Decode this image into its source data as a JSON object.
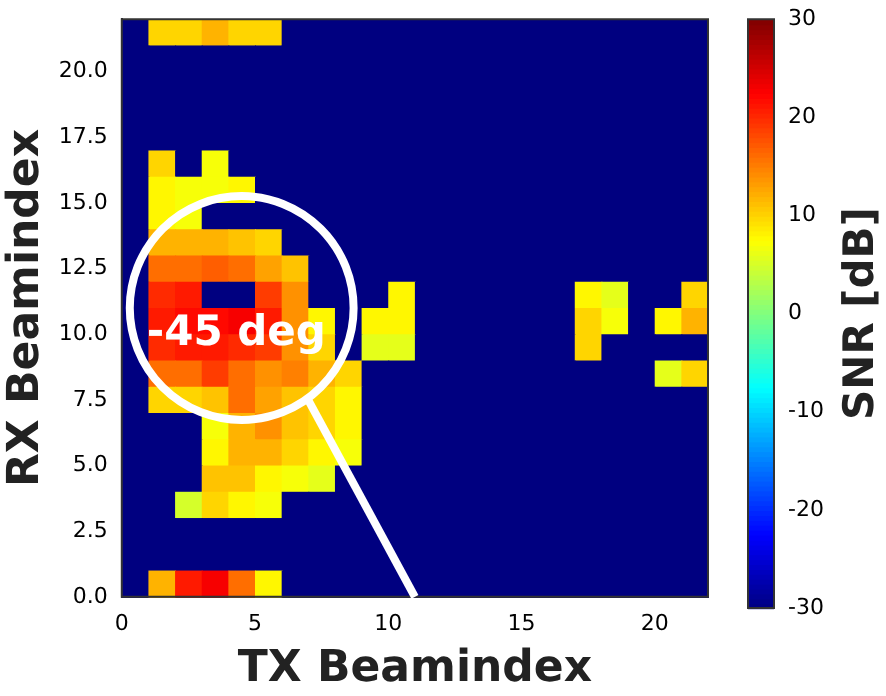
{
  "chart_data": {
    "type": "heatmap",
    "xlabel": "TX Beamindex",
    "ylabel": "RX Beamindex",
    "clabel": "SNR [dB]",
    "xlim": [
      0,
      22
    ],
    "ylim": [
      0,
      22
    ],
    "xticks": [
      0,
      5,
      10,
      15,
      20
    ],
    "yticks": [
      {
        "value": 0,
        "label": "0.0"
      },
      {
        "value": 2.5,
        "label": "2.5"
      },
      {
        "value": 5,
        "label": "5.0"
      },
      {
        "value": 7.5,
        "label": "7.5"
      },
      {
        "value": 10,
        "label": "10.0"
      },
      {
        "value": 12.5,
        "label": "12.5"
      },
      {
        "value": 15,
        "label": "15.0"
      },
      {
        "value": 17.5,
        "label": "17.5"
      },
      {
        "value": 20,
        "label": "20.0"
      }
    ],
    "clim": [
      -30,
      30
    ],
    "cticks": [
      -30,
      -20,
      -10,
      0,
      10,
      20,
      30
    ],
    "annotations": [
      "-45 deg"
    ],
    "cells": [
      [
        -30,
        10,
        10,
        12,
        10,
        10,
        -30,
        -30,
        -30,
        -30,
        -30,
        -30,
        -30,
        -30,
        -30,
        -30,
        -30,
        -30,
        -30,
        -30,
        -30,
        -30
      ],
      [
        -30,
        -30,
        -30,
        -30,
        -30,
        -30,
        -30,
        -30,
        -30,
        -30,
        -30,
        -30,
        -30,
        -30,
        -30,
        -30,
        -30,
        -30,
        -30,
        -30,
        -30,
        -30
      ],
      [
        -30,
        -30,
        -30,
        -30,
        -30,
        -30,
        -30,
        -30,
        -30,
        -30,
        -30,
        -30,
        -30,
        -30,
        -30,
        -30,
        -30,
        -30,
        -30,
        -30,
        -30,
        -30
      ],
      [
        -30,
        -30,
        -30,
        -30,
        -30,
        -30,
        -30,
        -30,
        -30,
        -30,
        -30,
        -30,
        -30,
        -30,
        -30,
        -30,
        -30,
        -30,
        -30,
        -30,
        -30,
        -30
      ],
      [
        -30,
        -30,
        -30,
        -30,
        -30,
        -30,
        -30,
        -30,
        -30,
        -30,
        -30,
        -30,
        -30,
        -30,
        -30,
        -30,
        -30,
        -30,
        -30,
        -30,
        -30,
        -30
      ],
      [
        -30,
        10,
        -30,
        7,
        -30,
        -30,
        -30,
        -30,
        -30,
        -30,
        -30,
        -30,
        -30,
        -30,
        -30,
        -30,
        -30,
        -30,
        -30,
        -30,
        -30,
        -30
      ],
      [
        -30,
        8,
        7,
        7,
        8,
        -30,
        -30,
        -30,
        -30,
        -30,
        -30,
        -30,
        -30,
        -30,
        -30,
        -30,
        -30,
        -30,
        -30,
        -30,
        -30,
        -30
      ],
      [
        -30,
        8,
        7,
        -30,
        -30,
        -30,
        -30,
        -30,
        -30,
        -30,
        -30,
        -30,
        -30,
        -30,
        -30,
        -30,
        -30,
        -30,
        -30,
        -30,
        -30,
        -30
      ],
      [
        -30,
        12,
        12,
        12,
        11,
        10,
        -30,
        -30,
        -30,
        -30,
        -30,
        -30,
        -30,
        -30,
        -30,
        -30,
        -30,
        -30,
        -30,
        -30,
        -30,
        -30
      ],
      [
        -30,
        16,
        16,
        17,
        16,
        13,
        11,
        -30,
        -30,
        -30,
        -30,
        -30,
        -30,
        -30,
        -30,
        -30,
        -30,
        -30,
        -30,
        -30,
        -30,
        -30
      ],
      [
        -30,
        20,
        21,
        -30,
        -30,
        19,
        14,
        -30,
        -30,
        -30,
        8,
        -30,
        -30,
        -30,
        -30,
        -30,
        -30,
        8,
        6,
        -30,
        -30,
        10
      ],
      [
        -30,
        21,
        22,
        22,
        23,
        21,
        14,
        8,
        -30,
        8,
        8,
        -30,
        -30,
        -30,
        -30,
        -30,
        -30,
        10,
        7,
        -30,
        8,
        12
      ],
      [
        -30,
        20,
        21,
        21,
        20,
        19,
        14,
        10,
        -30,
        6,
        6,
        -30,
        -30,
        -30,
        -30,
        -30,
        -30,
        10,
        -30,
        -30,
        -30,
        -30
      ],
      [
        -30,
        16,
        16,
        19,
        16,
        14,
        15,
        12,
        10,
        -30,
        -30,
        -30,
        -30,
        -30,
        -30,
        -30,
        -30,
        -30,
        -30,
        -30,
        6,
        10
      ],
      [
        -30,
        10,
        10,
        11,
        16,
        13,
        11,
        10,
        8,
        -30,
        -30,
        -30,
        -30,
        -30,
        -30,
        -30,
        -30,
        -30,
        -30,
        -30,
        -30,
        -30
      ],
      [
        -30,
        -30,
        -30,
        7,
        12,
        14,
        11,
        10,
        8,
        -30,
        -30,
        -30,
        -30,
        -30,
        -30,
        -30,
        -30,
        -30,
        -30,
        -30,
        -30,
        -30
      ],
      [
        -30,
        -30,
        -30,
        8,
        12,
        12,
        10,
        8,
        7,
        -30,
        -30,
        -30,
        -30,
        -30,
        -30,
        -30,
        -30,
        -30,
        -30,
        -30,
        -30,
        -30
      ],
      [
        -30,
        -30,
        -30,
        11,
        11,
        8,
        7,
        6,
        -30,
        -30,
        -30,
        -30,
        -30,
        -30,
        -30,
        -30,
        -30,
        -30,
        -30,
        -30,
        -30,
        -30
      ],
      [
        -30,
        -30,
        5,
        10,
        8,
        7,
        -30,
        -30,
        -30,
        -30,
        -30,
        -30,
        -30,
        -30,
        -30,
        -30,
        -30,
        -30,
        -30,
        -30,
        -30,
        -30
      ],
      [
        -30,
        -30,
        -30,
        -30,
        -30,
        -30,
        -30,
        -30,
        -30,
        -30,
        -30,
        -30,
        -30,
        -30,
        -30,
        -30,
        -30,
        -30,
        -30,
        -30,
        -30,
        -30
      ],
      [
        -30,
        -30,
        -30,
        -30,
        -30,
        -30,
        -30,
        -30,
        -30,
        -30,
        -30,
        -30,
        -30,
        -30,
        -30,
        -30,
        -30,
        -30,
        -30,
        -30,
        -30,
        -30
      ],
      [
        -30,
        12,
        21,
        23,
        16,
        8,
        -30,
        -30,
        -30,
        -30,
        -30,
        -30,
        -30,
        -30,
        -30,
        -30,
        -30,
        -30,
        -30,
        -30,
        -30,
        -30
      ]
    ]
  }
}
